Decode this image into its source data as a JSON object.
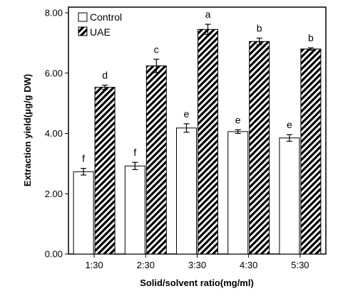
{
  "chart_data": {
    "type": "bar",
    "categories": [
      "1:30",
      "2:30",
      "3:30",
      "4:30",
      "5:30"
    ],
    "series": [
      {
        "name": "Control",
        "values": [
          2.73,
          2.92,
          4.18,
          4.06,
          3.85
        ],
        "errors": [
          0.11,
          0.12,
          0.14,
          0.06,
          0.11
        ],
        "labels": [
          "f",
          "f",
          "e",
          "e",
          "e"
        ],
        "style": "open"
      },
      {
        "name": "UAE",
        "values": [
          5.53,
          6.24,
          7.45,
          7.05,
          6.8
        ],
        "errors": [
          0.07,
          0.22,
          0.17,
          0.11,
          0.04
        ],
        "labels": [
          "d",
          "c",
          "a",
          "b",
          "b"
        ],
        "style": "hatched"
      }
    ],
    "xlabel": "Solid/solvent ratio(mg/ml)",
    "ylabel": "Extraction yield(μg/g DW)",
    "ylim": [
      0,
      8
    ],
    "yticks": [
      "0.00",
      "2.00",
      "4.00",
      "6.00",
      "8.00"
    ],
    "grid": false,
    "legend_position": "top-left",
    "colors": {
      "frame": "#000000",
      "fill": "#ffffff",
      "hatch": "#000000"
    }
  }
}
